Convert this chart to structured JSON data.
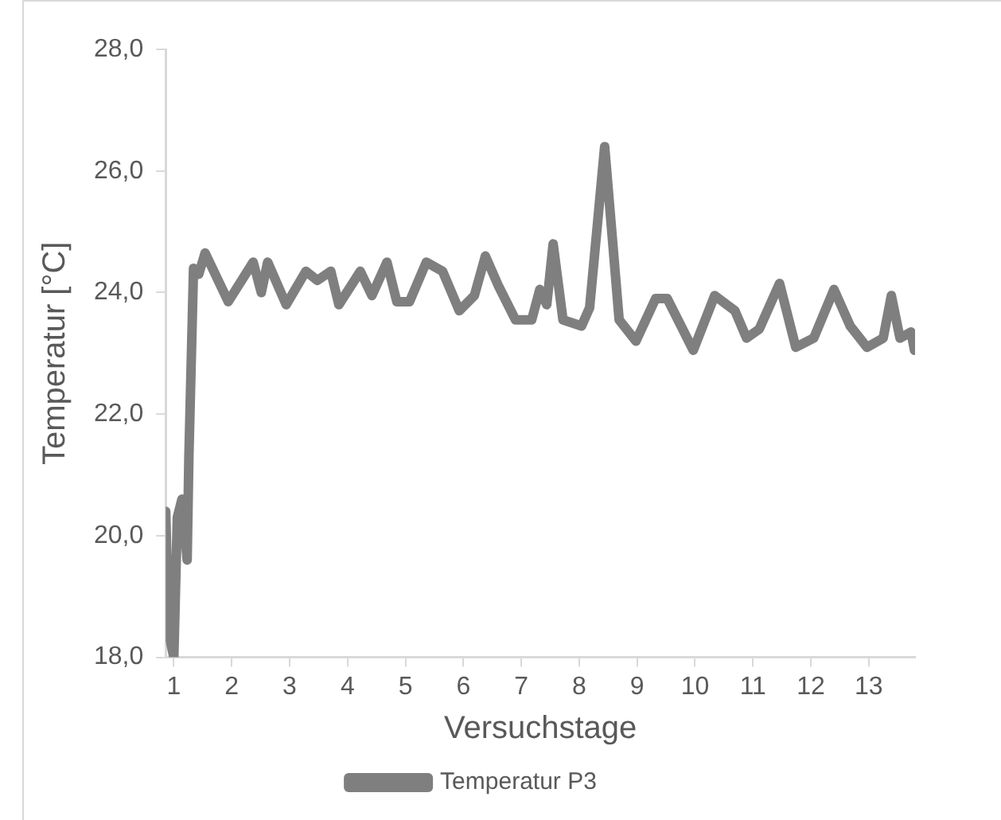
{
  "chart_data": {
    "type": "line",
    "xlabel": "Versuchstage",
    "ylabel": "Temperatur [°C]",
    "x": [
      0.86,
      0.91,
      1.0,
      1.06,
      1.14,
      1.23,
      1.26,
      1.34,
      1.43,
      1.54,
      1.94,
      2.37,
      2.51,
      2.62,
      2.94,
      3.28,
      3.48,
      3.71,
      3.85,
      4.22,
      4.42,
      4.68,
      4.85,
      5.07,
      5.36,
      5.64,
      5.93,
      6.19,
      6.38,
      6.61,
      6.9,
      7.18,
      7.32,
      7.44,
      7.55,
      7.72,
      8.04,
      8.18,
      8.44,
      8.69,
      8.98,
      9.32,
      9.52,
      9.97,
      10.34,
      10.69,
      10.89,
      11.11,
      11.46,
      11.74,
      12.05,
      12.4,
      12.68,
      12.97,
      13.25,
      13.39,
      13.54,
      13.73,
      13.79
    ],
    "series": [
      {
        "name": "Temperatur P3",
        "color": "#7f7f7f",
        "values": [
          20.4,
          18.4,
          18.0,
          20.3,
          20.6,
          19.6,
          21.3,
          24.4,
          24.3,
          24.65,
          23.85,
          24.5,
          24.0,
          24.5,
          23.8,
          24.35,
          24.2,
          24.35,
          23.8,
          24.35,
          23.95,
          24.5,
          23.85,
          23.85,
          24.5,
          24.35,
          23.7,
          23.95,
          24.6,
          24.1,
          23.55,
          23.55,
          24.05,
          23.8,
          24.8,
          23.55,
          23.45,
          23.75,
          26.4,
          23.55,
          23.2,
          23.9,
          23.9,
          23.05,
          23.95,
          23.7,
          23.25,
          23.4,
          24.15,
          23.1,
          23.25,
          24.05,
          23.45,
          23.1,
          23.25,
          23.95,
          23.25,
          23.35,
          23.05
        ]
      }
    ],
    "xlim": [
      0.86,
      13.8
    ],
    "xticks": [
      1,
      2,
      3,
      4,
      5,
      6,
      7,
      8,
      9,
      10,
      11,
      12,
      13
    ],
    "ylim": [
      18,
      28
    ],
    "yticks": [
      {
        "value": 18,
        "label": "18,0"
      },
      {
        "value": 20,
        "label": "20,0"
      },
      {
        "value": 22,
        "label": "22,0"
      },
      {
        "value": 24,
        "label": "24,0"
      },
      {
        "value": 26,
        "label": "26,0"
      },
      {
        "value": 28,
        "label": "28,0"
      }
    ],
    "grid": false,
    "legend": "bottom",
    "marker": "none",
    "line_style": "solid"
  }
}
